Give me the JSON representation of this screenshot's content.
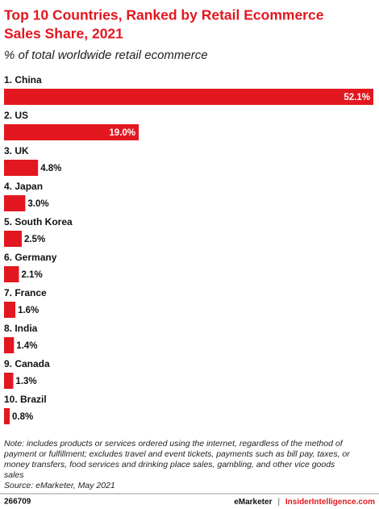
{
  "chart_data": {
    "type": "bar",
    "orientation": "horizontal",
    "title": [
      "Top 10 Countries, Ranked by Retail Ecommerce",
      "Sales Share, 2021"
    ],
    "subtitle": "% of total worldwide retail ecommerce",
    "categories": [
      "1. China",
      "2. US",
      "3. UK",
      "4. Japan",
      "5. South Korea",
      "6. Germany",
      "7. France",
      "8. India",
      "9. Canada",
      "10. Brazil"
    ],
    "values": [
      52.1,
      19.0,
      4.8,
      3.0,
      2.5,
      2.1,
      1.6,
      1.4,
      1.3,
      0.8
    ],
    "value_labels": [
      "52.1%",
      "19.0%",
      "4.8%",
      "3.0%",
      "2.5%",
      "2.1%",
      "1.6%",
      "1.4%",
      "1.3%",
      "0.8%"
    ],
    "color": "#e3171f",
    "note": [
      "Note: includes products or services ordered using the internet, regardless of the method of",
      "payment or fulfillment; excludes travel and event tickets, payments such as bill pay, taxes, or",
      "money transfers, food services and drinking place sales, gambling, and other vice goods",
      "sales"
    ],
    "source": "Source: eMarketer, May 2021",
    "footer": {
      "id": "266709",
      "brand": "eMarketer",
      "separator": "|",
      "site": "InsiderIntelligence.com"
    }
  }
}
